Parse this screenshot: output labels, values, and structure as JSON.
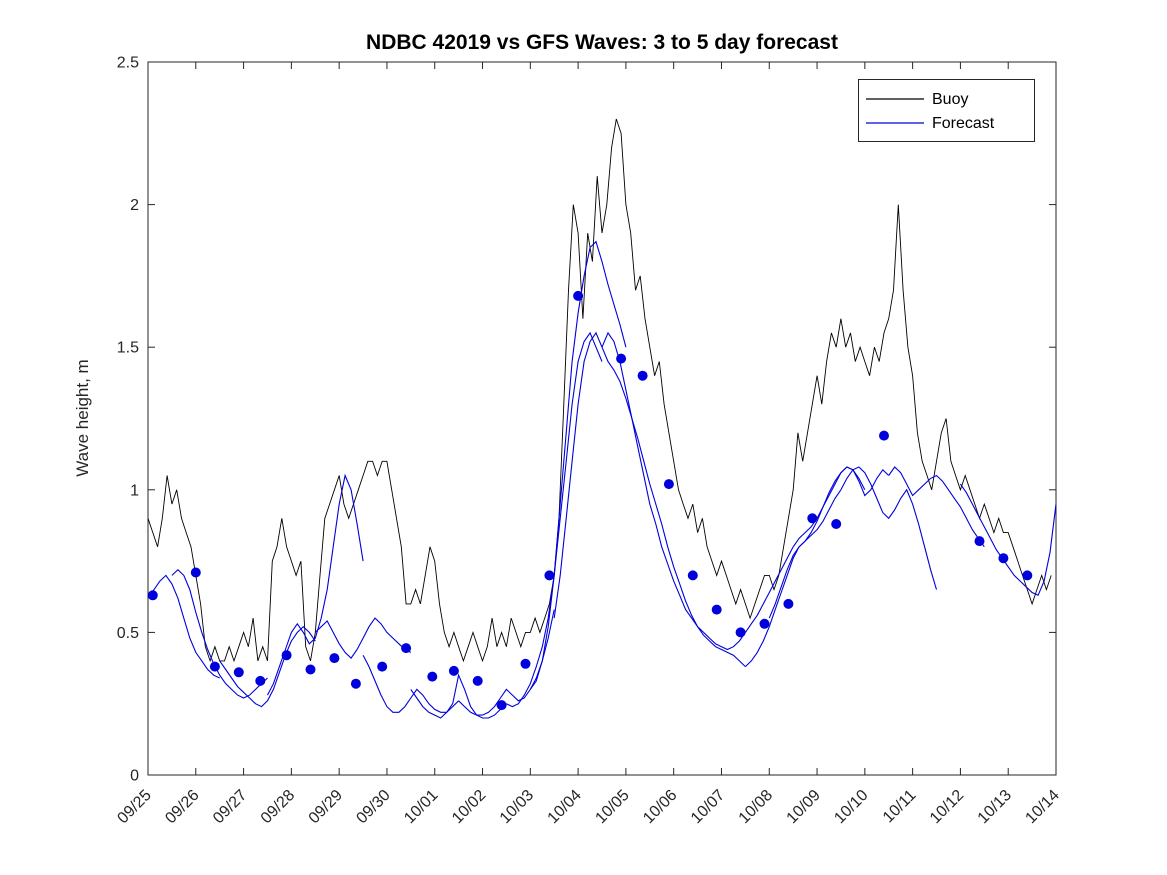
{
  "chart_data": {
    "type": "line",
    "title": "NDBC 42019 vs GFS Waves: 3 to 5 day forecast",
    "xlabel": "",
    "ylabel": "Wave height, m",
    "xlim": [
      0,
      19
    ],
    "ylim": [
      0,
      2.5
    ],
    "grid": false,
    "x_ticks": [
      0,
      1,
      2,
      3,
      4,
      5,
      6,
      7,
      8,
      9,
      10,
      11,
      12,
      13,
      14,
      15,
      16,
      17,
      18,
      19
    ],
    "x_ticklabels": [
      "09/25",
      "09/26",
      "09/27",
      "09/28",
      "09/29",
      "09/30",
      "10/01",
      "10/02",
      "10/03",
      "10/04",
      "10/05",
      "10/06",
      "10/07",
      "10/08",
      "10/09",
      "10/10",
      "10/11",
      "10/12",
      "10/13",
      "10/14"
    ],
    "y_ticks": [
      0,
      0.5,
      1,
      1.5,
      2,
      2.5
    ],
    "y_ticklabels": [
      "0",
      "0.5",
      "1",
      "1.5",
      "2",
      "2.5"
    ],
    "legend": {
      "position": "northeast",
      "entries": [
        {
          "label": "Buoy",
          "color": "#000000"
        },
        {
          "label": "Forecast",
          "color": "#0000dd"
        }
      ]
    },
    "colors": {
      "axis": "#262626",
      "buoy": "#000000",
      "forecast": "#0000dd",
      "marker": "#0000dd",
      "background": "#ffffff"
    },
    "buoy": {
      "t0": 0,
      "dt": 0.1,
      "values": [
        0.9,
        0.85,
        0.8,
        0.9,
        1.05,
        0.95,
        1.0,
        0.9,
        0.85,
        0.8,
        0.7,
        0.6,
        0.45,
        0.4,
        0.45,
        0.4,
        0.4,
        0.45,
        0.4,
        0.45,
        0.5,
        0.45,
        0.55,
        0.4,
        0.45,
        0.4,
        0.75,
        0.8,
        0.9,
        0.8,
        0.75,
        0.7,
        0.75,
        0.45,
        0.4,
        0.5,
        0.7,
        0.9,
        0.95,
        1.0,
        1.05,
        0.95,
        0.9,
        0.95,
        1.0,
        1.05,
        1.1,
        1.1,
        1.05,
        1.1,
        1.1,
        1.0,
        0.9,
        0.8,
        0.6,
        0.6,
        0.65,
        0.6,
        0.7,
        0.8,
        0.75,
        0.6,
        0.5,
        0.45,
        0.5,
        0.45,
        0.4,
        0.45,
        0.5,
        0.45,
        0.4,
        0.45,
        0.55,
        0.45,
        0.5,
        0.45,
        0.55,
        0.5,
        0.45,
        0.5,
        0.5,
        0.55,
        0.5,
        0.55,
        0.6,
        0.7,
        0.9,
        1.3,
        1.7,
        2.0,
        1.9,
        1.6,
        1.9,
        1.8,
        2.1,
        1.9,
        2.0,
        2.2,
        2.3,
        2.25,
        2.0,
        1.9,
        1.7,
        1.75,
        1.6,
        1.5,
        1.4,
        1.45,
        1.3,
        1.2,
        1.1,
        1.0,
        0.95,
        0.9,
        0.95,
        0.85,
        0.9,
        0.8,
        0.75,
        0.7,
        0.75,
        0.7,
        0.65,
        0.6,
        0.65,
        0.6,
        0.55,
        0.6,
        0.65,
        0.7,
        0.7,
        0.65,
        0.7,
        0.8,
        0.9,
        1.0,
        1.2,
        1.1,
        1.2,
        1.3,
        1.4,
        1.3,
        1.45,
        1.55,
        1.5,
        1.6,
        1.5,
        1.55,
        1.45,
        1.5,
        1.45,
        1.4,
        1.5,
        1.45,
        1.55,
        1.6,
        1.7,
        2.0,
        1.7,
        1.5,
        1.4,
        1.2,
        1.1,
        1.05,
        1.0,
        1.1,
        1.2,
        1.25,
        1.1,
        1.05,
        1.0,
        1.05,
        1.0,
        0.95,
        0.9,
        0.95,
        0.9,
        0.85,
        0.9,
        0.85,
        0.85,
        0.8,
        0.75,
        0.7,
        0.65,
        0.6,
        0.65,
        0.7,
        0.65,
        0.7
      ]
    },
    "forecast_segments": [
      {
        "t0": 0.0,
        "dt": 0.125,
        "values": [
          0.62,
          0.65,
          0.68,
          0.7,
          0.67,
          0.62,
          0.55,
          0.48,
          0.43,
          0.4,
          0.37,
          0.35,
          0.34
        ]
      },
      {
        "t0": 0.5,
        "dt": 0.125,
        "values": [
          0.7,
          0.72,
          0.7,
          0.65,
          0.57,
          0.5,
          0.44,
          0.39,
          0.35,
          0.32,
          0.3,
          0.28,
          0.27,
          0.28,
          0.3,
          0.32,
          0.34
        ]
      },
      {
        "t0": 1.5,
        "dt": 0.125,
        "values": [
          0.4,
          0.37,
          0.34,
          0.31,
          0.29,
          0.27,
          0.25,
          0.24,
          0.26,
          0.3,
          0.36,
          0.42,
          0.47,
          0.5,
          0.52,
          0.5,
          0.47
        ]
      },
      {
        "t0": 2.5,
        "dt": 0.125,
        "values": [
          0.28,
          0.32,
          0.38,
          0.44,
          0.5,
          0.53,
          0.5,
          0.46,
          0.48,
          0.55,
          0.65,
          0.8,
          0.95,
          1.05,
          1.0,
          0.88,
          0.75
        ]
      },
      {
        "t0": 3.5,
        "dt": 0.125,
        "values": [
          0.5,
          0.52,
          0.54,
          0.5,
          0.46,
          0.43,
          0.41,
          0.44,
          0.48,
          0.52,
          0.55,
          0.53,
          0.5,
          0.48,
          0.46,
          0.44,
          0.43
        ]
      },
      {
        "t0": 4.5,
        "dt": 0.125,
        "values": [
          0.42,
          0.38,
          0.33,
          0.28,
          0.24,
          0.22,
          0.22,
          0.24,
          0.27,
          0.3,
          0.28,
          0.25,
          0.23,
          0.22,
          0.22,
          0.24,
          0.26
        ]
      },
      {
        "t0": 5.5,
        "dt": 0.125,
        "values": [
          0.3,
          0.27,
          0.24,
          0.22,
          0.21,
          0.2,
          0.22,
          0.25,
          0.35,
          0.3,
          0.24,
          0.21,
          0.2,
          0.2,
          0.21,
          0.23,
          0.25
        ]
      },
      {
        "t0": 6.5,
        "dt": 0.125,
        "values": [
          0.26,
          0.24,
          0.22,
          0.21,
          0.21,
          0.22,
          0.24,
          0.27,
          0.3,
          0.28,
          0.26,
          0.27,
          0.3,
          0.34,
          0.4,
          0.48,
          0.58
        ]
      },
      {
        "t0": 7.5,
        "dt": 0.125,
        "values": [
          0.25,
          0.24,
          0.25,
          0.28,
          0.32,
          0.38,
          0.45,
          0.55,
          0.7,
          0.9,
          1.1,
          1.3,
          1.45,
          1.52,
          1.55,
          1.5,
          1.45
        ]
      },
      {
        "t0": 8.0,
        "dt": 0.125,
        "values": [
          0.3,
          0.33,
          0.4,
          0.52,
          0.7,
          0.95,
          1.2,
          1.45,
          1.62,
          1.75,
          1.85,
          1.87,
          1.8,
          1.72,
          1.65,
          1.58,
          1.5
        ]
      },
      {
        "t0": 8.5,
        "dt": 0.125,
        "values": [
          0.55,
          0.7,
          0.9,
          1.1,
          1.3,
          1.45,
          1.52,
          1.55,
          1.5,
          1.45,
          1.42,
          1.38,
          1.32,
          1.25,
          1.18,
          1.1,
          1.02
        ]
      },
      {
        "t0": 9.5,
        "dt": 0.125,
        "values": [
          1.5,
          1.55,
          1.52,
          1.45,
          1.35,
          1.25,
          1.15,
          1.05,
          0.95,
          0.88,
          0.8,
          0.74,
          0.68,
          0.63,
          0.58,
          0.55,
          0.52
        ]
      },
      {
        "t0": 10.5,
        "dt": 0.125,
        "values": [
          1.02,
          0.95,
          0.88,
          0.8,
          0.73,
          0.67,
          0.61,
          0.56,
          0.52,
          0.49,
          0.47,
          0.45,
          0.44,
          0.43,
          0.42,
          0.4,
          0.38
        ]
      },
      {
        "t0": 11.5,
        "dt": 0.125,
        "values": [
          0.52,
          0.5,
          0.48,
          0.46,
          0.45,
          0.44,
          0.45,
          0.47,
          0.5,
          0.53,
          0.56,
          0.6,
          0.64,
          0.68,
          0.72,
          0.76,
          0.8
        ]
      },
      {
        "t0": 12.5,
        "dt": 0.125,
        "values": [
          0.38,
          0.4,
          0.43,
          0.47,
          0.52,
          0.58,
          0.64,
          0.7,
          0.76,
          0.8,
          0.82,
          0.84,
          0.86,
          0.89,
          0.93,
          0.97,
          1.0
        ]
      },
      {
        "t0": 13.0,
        "dt": 0.125,
        "values": [
          0.55,
          0.6,
          0.66,
          0.72,
          0.77,
          0.8,
          0.82,
          0.85,
          0.89,
          0.94,
          0.99,
          1.03,
          1.06,
          1.08,
          1.07,
          1.04,
          1.0
        ]
      },
      {
        "t0": 13.5,
        "dt": 0.125,
        "values": [
          0.8,
          0.83,
          0.85,
          0.87,
          0.9,
          0.94,
          0.98,
          1.02,
          1.06,
          1.08,
          1.07,
          1.03,
          0.98,
          1.0,
          1.04,
          1.07,
          1.05
        ]
      },
      {
        "t0": 14.5,
        "dt": 0.125,
        "values": [
          1.0,
          1.04,
          1.07,
          1.08,
          1.06,
          1.02,
          0.97,
          0.92,
          0.9,
          0.93,
          0.97,
          1.0,
          0.95,
          0.88,
          0.8,
          0.72,
          0.65
        ]
      },
      {
        "t0": 15.5,
        "dt": 0.125,
        "values": [
          1.05,
          1.08,
          1.06,
          1.02,
          0.98,
          1.0,
          1.02,
          1.04,
          1.05,
          1.03,
          1.0,
          0.97,
          0.94,
          0.9,
          0.86,
          0.83,
          0.8
        ]
      },
      {
        "t0": 17.0,
        "dt": 0.125,
        "values": [
          1.02,
          0.99,
          0.95,
          0.91,
          0.87,
          0.83,
          0.79,
          0.76,
          0.73,
          0.7,
          0.68,
          0.66,
          0.64,
          0.63,
          0.68,
          0.78,
          0.95
        ]
      }
    ],
    "forecast_markers": {
      "t": [
        0.1,
        1.0,
        1.4,
        1.9,
        2.35,
        2.9,
        3.4,
        3.9,
        4.35,
        4.9,
        5.4,
        5.95,
        6.4,
        6.9,
        7.4,
        7.9,
        8.4,
        9.0,
        9.9,
        10.35,
        10.9,
        11.4,
        11.9,
        12.4,
        12.9,
        13.4,
        13.9,
        14.4,
        15.4,
        17.4,
        17.9,
        18.4
      ],
      "y": [
        0.63,
        0.71,
        0.38,
        0.36,
        0.33,
        0.42,
        0.37,
        0.41,
        0.32,
        0.38,
        0.445,
        0.345,
        0.365,
        0.33,
        0.245,
        0.39,
        0.7,
        1.68,
        1.46,
        1.4,
        1.02,
        0.7,
        0.58,
        0.5,
        0.53,
        0.6,
        0.9,
        0.88,
        1.19,
        0.82,
        0.76,
        0.7
      ]
    }
  }
}
